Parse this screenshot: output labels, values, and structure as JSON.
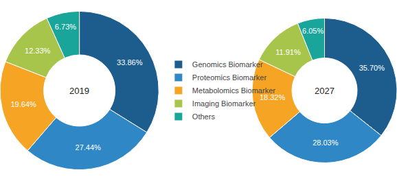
{
  "chart_data": [
    {
      "type": "pie",
      "title": "2019",
      "categories": [
        "Genomics Biomarker",
        "Proteomics Biomarker",
        "Metabolomics Biomarker",
        "Imaging Biomarker",
        "Others"
      ],
      "values": [
        33.86,
        27.44,
        19.64,
        12.33,
        6.73
      ],
      "value_labels": [
        "33.86%",
        "27.44%",
        "19.64%",
        "12.33%",
        "6.73%"
      ],
      "colors": [
        "#1d5d8e",
        "#2f88c5",
        "#f6a423",
        "#a8c54b",
        "#19a59a"
      ],
      "data_labels": true,
      "legend": "center"
    },
    {
      "type": "pie",
      "title": "2027",
      "categories": [
        "Genomics Biomarker",
        "Proteomics Biomarker",
        "Metabolomics Biomarker",
        "Imaging Biomarker",
        "Others"
      ],
      "values": [
        35.7,
        28.03,
        18.32,
        11.91,
        6.05
      ],
      "value_labels": [
        "35.70%",
        "28.03%",
        "18.32%",
        "11.91%",
        "6.05%"
      ],
      "colors": [
        "#1d5d8e",
        "#2f88c5",
        "#f6a423",
        "#a8c54b",
        "#19a59a"
      ],
      "data_labels": true
    }
  ]
}
